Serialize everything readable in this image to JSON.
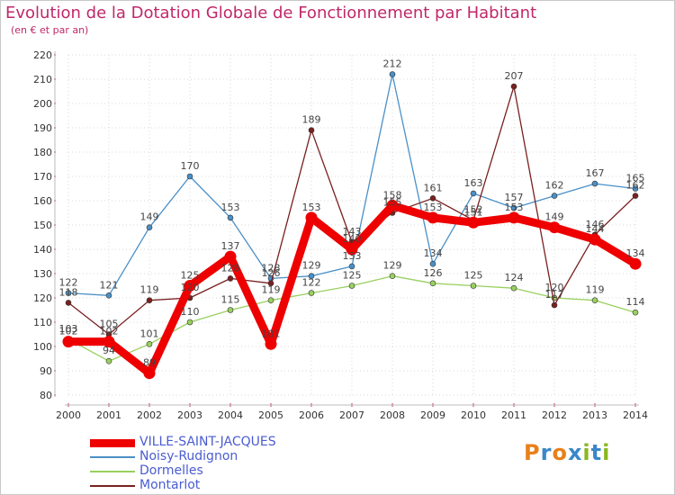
{
  "header": {
    "title": "Evolution de la Dotation Globale de Fonctionnement par Habitant",
    "subtitle": "(en € et par an)"
  },
  "logo": {
    "text": "Proxiti",
    "colors": [
      "#e8801a",
      "#3a88c8",
      "#e8801a",
      "#3a88c8",
      "#8ab820",
      "#3a88c8",
      "#8ab820"
    ]
  },
  "chart_data": {
    "type": "line",
    "title": "Evolution de la Dotation Globale de Fonctionnement par Habitant",
    "subtitle": "(en € et par an)",
    "xlabel": "",
    "ylabel": "",
    "x": [
      "2000",
      "2001",
      "2002",
      "2003",
      "2004",
      "2005",
      "2006",
      "2007",
      "2008",
      "2009",
      "2010",
      "2011",
      "2012",
      "2013",
      "2014"
    ],
    "ylim": [
      80,
      220
    ],
    "yticks": [
      80,
      90,
      100,
      110,
      120,
      130,
      140,
      150,
      160,
      170,
      180,
      190,
      200,
      210,
      220
    ],
    "grid": true,
    "legend_position": "bottom-left",
    "series": [
      {
        "name": "Noisy-Rudignon",
        "color": "#4a90c8",
        "values": [
          122,
          121,
          149,
          170,
          153,
          128,
          129,
          133,
          212,
          134,
          163,
          157,
          162,
          167,
          165
        ]
      },
      {
        "name": "Dormelles",
        "color": "#99d060",
        "values": [
          103,
          94,
          101,
          110,
          115,
          119,
          122,
          125,
          129,
          126,
          125,
          124,
          120,
          119,
          114
        ]
      },
      {
        "name": "Montarlot",
        "color": "#7a2020",
        "values": [
          118,
          105,
          119,
          120,
          128,
          126,
          189,
          143,
          155,
          161,
          152,
          207,
          117,
          146,
          162
        ]
      },
      {
        "name": "VILLE-SAINT-JACQUES",
        "color": "#ee0000",
        "values": [
          102,
          102,
          89,
          125,
          137,
          101,
          153,
          140,
          158,
          153,
          151,
          153,
          149,
          144,
          134
        ]
      }
    ]
  }
}
